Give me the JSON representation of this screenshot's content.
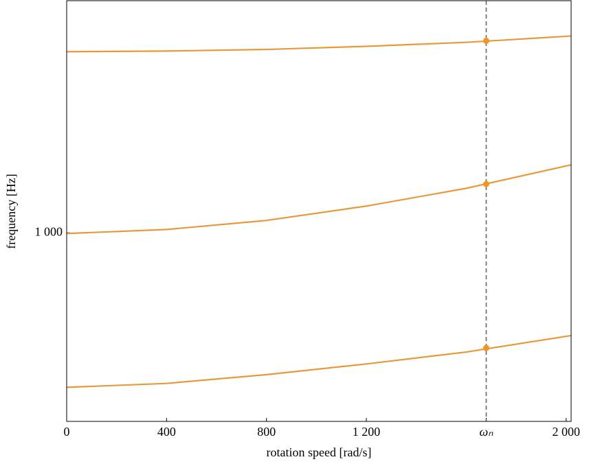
{
  "chart_data": {
    "type": "line",
    "xlabel": "rotation speed [rad/s]",
    "ylabel": "frequency [Hz]",
    "x": [
      0,
      400,
      800,
      1200,
      1600,
      2020
    ],
    "series": [
      {
        "color": "#e8983a",
        "values": [
          658,
          665,
          681,
          701,
          724,
          757
        ]
      },
      {
        "color": "#e8983a",
        "values": [
          998,
          1009,
          1034,
          1075,
          1128,
          1202
        ]
      },
      {
        "color": "#e8983a",
        "values": [
          1633,
          1636,
          1643,
          1657,
          1675,
          1704
        ]
      }
    ],
    "vline": 1680,
    "vline_color": "#666666",
    "markers": [
      732,
      1141,
      1682
    ],
    "marker_color": "#f7931e",
    "xlim": [
      0,
      2020
    ],
    "ylim": [
      600,
      1875
    ],
    "yscale": "log",
    "xticks": [
      0,
      400,
      800,
      {
        "value": 1200,
        "label": "1 200"
      },
      {
        "value": 1680,
        "label": "ωₙ"
      },
      {
        "value": 2000,
        "label": "2 000"
      }
    ],
    "yticks": [
      {
        "value": 1000,
        "label": "1 000"
      }
    ]
  }
}
